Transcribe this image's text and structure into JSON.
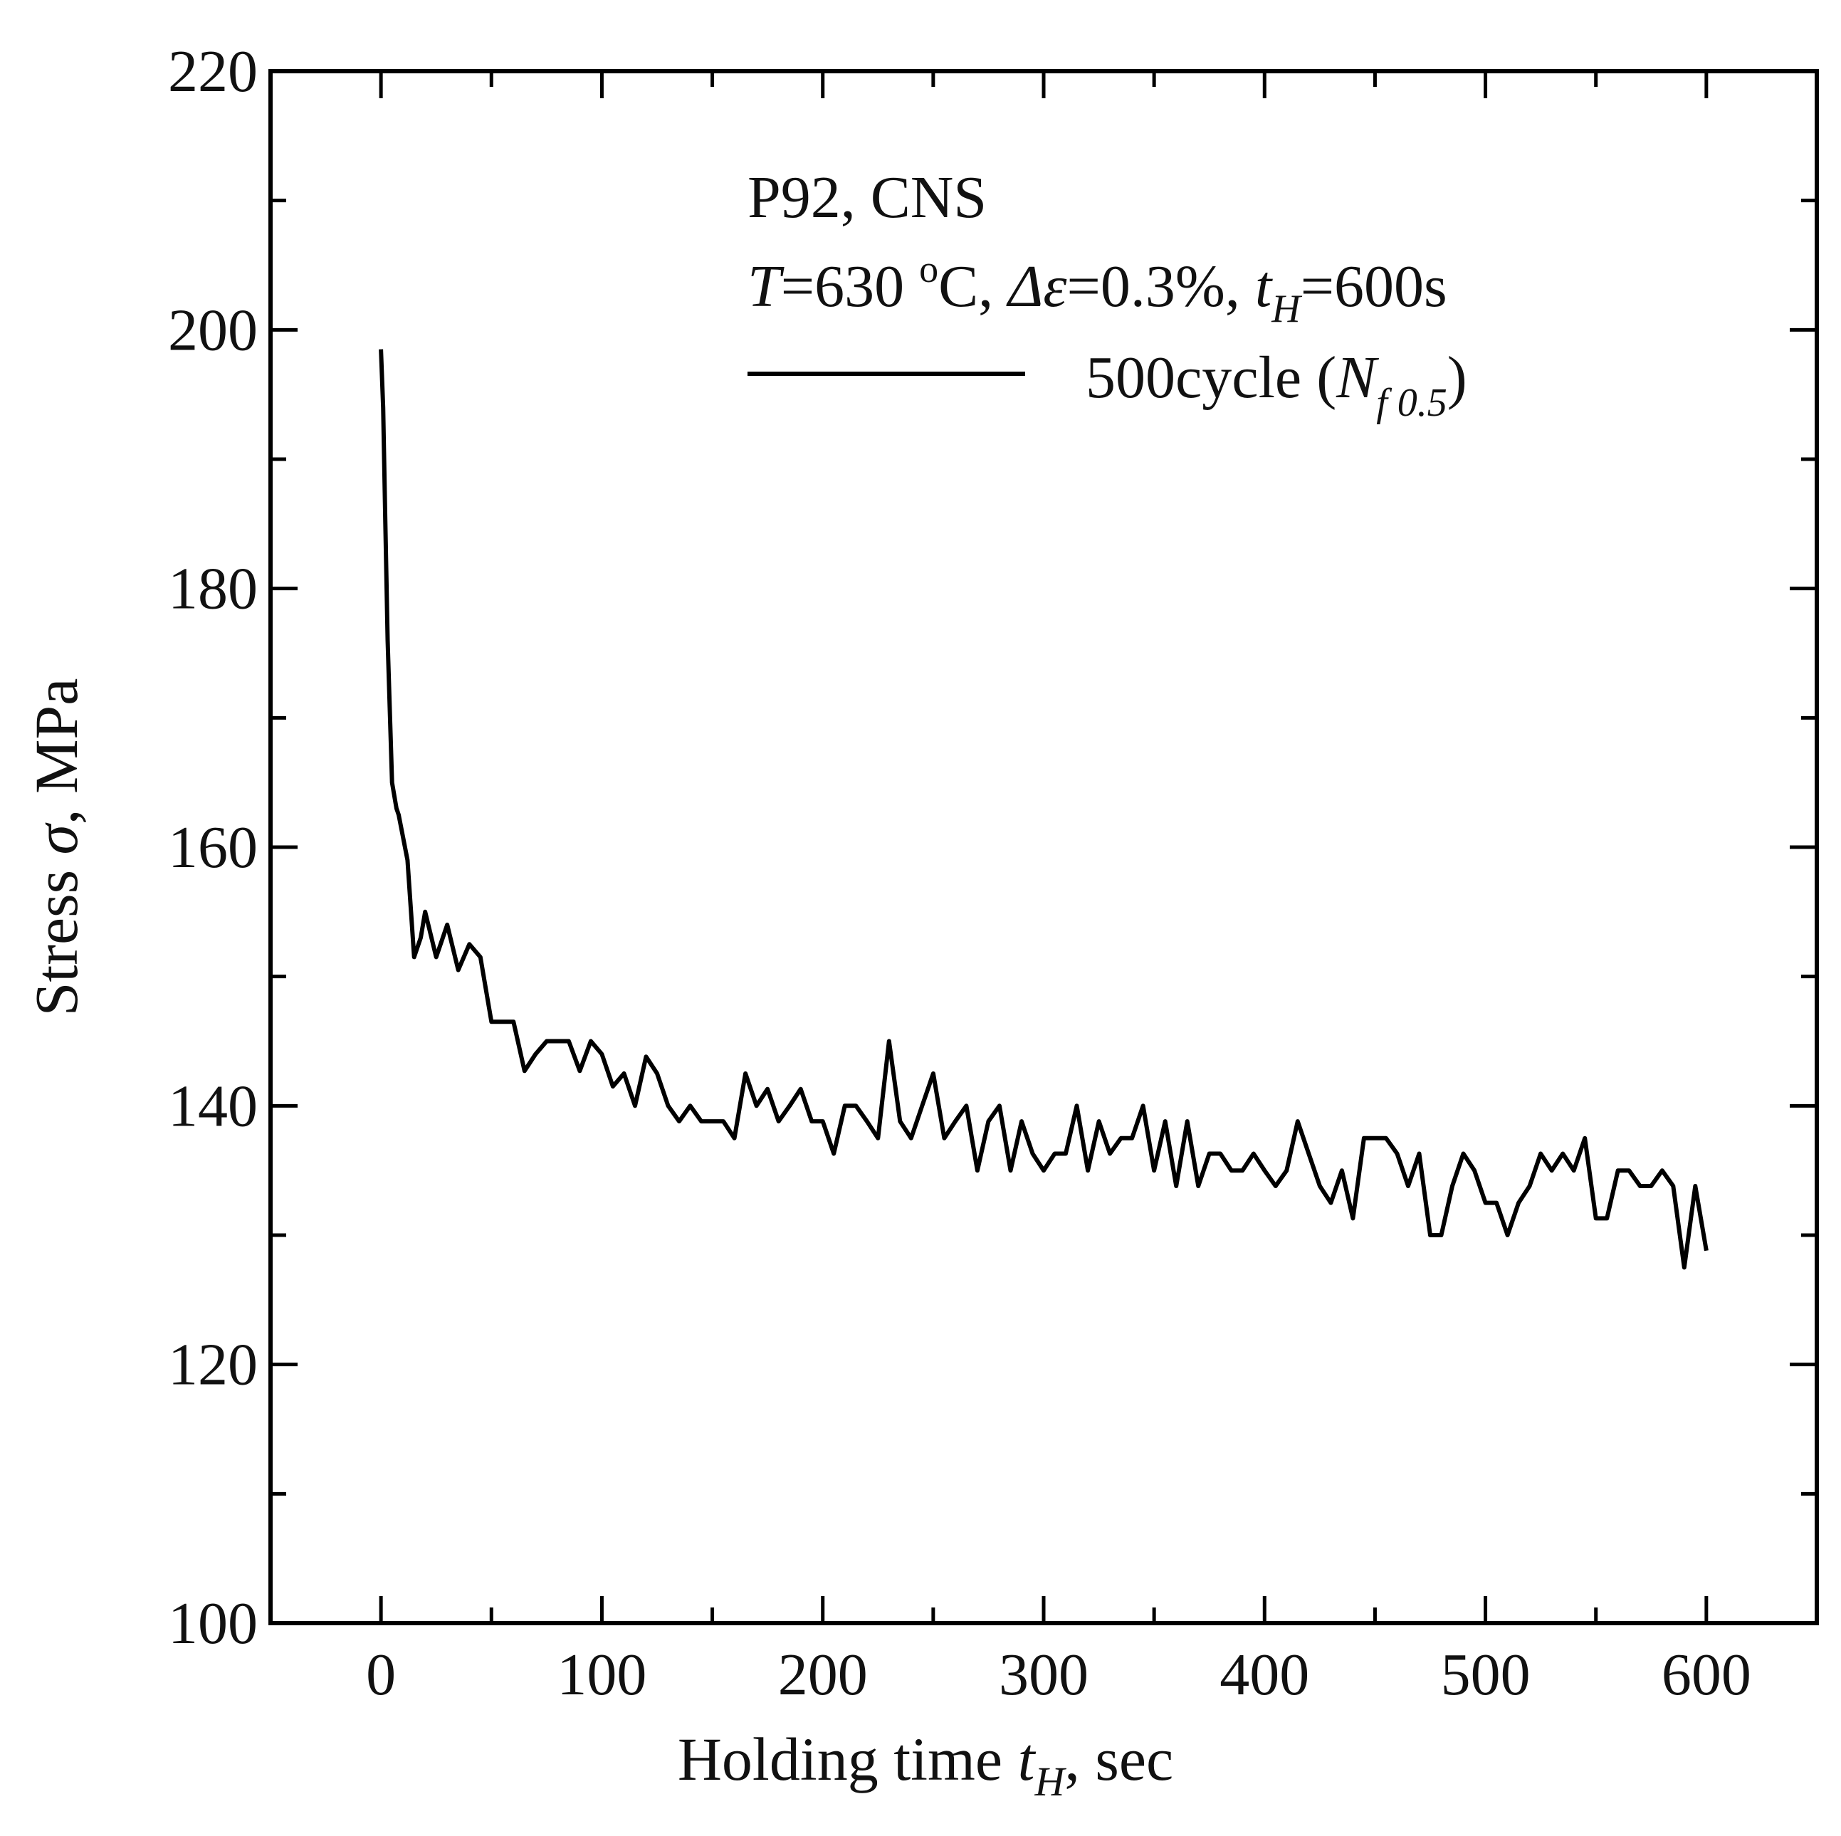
{
  "chart_data": {
    "type": "line",
    "title": "",
    "xlabel": "Holding time t_H, sec",
    "ylabel": "Stress σ, MPa",
    "xlim": [
      -50,
      650
    ],
    "ylim": [
      100,
      220
    ],
    "x_ticks": [
      0,
      100,
      200,
      300,
      400,
      500,
      600
    ],
    "y_ticks": [
      100,
      120,
      140,
      160,
      180,
      200,
      220
    ],
    "x_tick_labels": [
      "0",
      "100",
      "200",
      "300",
      "400",
      "500",
      "600"
    ],
    "y_tick_labels": [
      "100",
      "120",
      "140",
      "160",
      "180",
      "200",
      "220"
    ],
    "grid": false,
    "xlabel_parts": {
      "pre": "Holding time ",
      "var": "t",
      "sub": "H",
      "post": ", sec"
    },
    "ylabel_parts": {
      "pre": "Stress ",
      "var": "σ",
      "post": ", MPa"
    },
    "annotations": {
      "line1": "P92, CNS",
      "line2": {
        "T": "T",
        "T_val": "=630 ",
        "deg": "o",
        "unit": "C, ",
        "de": "Δε",
        "de_val": "=0.3%, ",
        "t": "t",
        "t_sub": "H",
        "t_val": "=600s"
      }
    },
    "legend": {
      "position": "top-right",
      "entries": [
        {
          "name": "500cycle",
          "open": " (",
          "N": "N",
          "N_sub": "f 0.5",
          "close": ")"
        }
      ]
    },
    "series": [
      {
        "name": "500cycle (N_f0.5)",
        "color": "#000000",
        "x": [
          0,
          1,
          2,
          3,
          5,
          7,
          8,
          12,
          15,
          18,
          20,
          25,
          30,
          35,
          40,
          45,
          50,
          55,
          60,
          65,
          70,
          75,
          80,
          85,
          90,
          95,
          100,
          105,
          110,
          115,
          120,
          125,
          130,
          135,
          140,
          145,
          150,
          155,
          160,
          165,
          170,
          175,
          180,
          185,
          190,
          195,
          200,
          205,
          210,
          215,
          220,
          225,
          230,
          235,
          240,
          245,
          250,
          255,
          260,
          265,
          270,
          275,
          280,
          285,
          290,
          295,
          300,
          305,
          310,
          315,
          320,
          325,
          330,
          335,
          340,
          345,
          350,
          355,
          360,
          365,
          370,
          375,
          380,
          385,
          390,
          395,
          400,
          405,
          410,
          415,
          420,
          425,
          430,
          435,
          440,
          445,
          450,
          455,
          460,
          465,
          470,
          475,
          480,
          485,
          490,
          495,
          500,
          505,
          510,
          515,
          520,
          525,
          530,
          535,
          540,
          545,
          550,
          555,
          560,
          565,
          570,
          575,
          580,
          585,
          590,
          595,
          600
        ],
        "values": [
          198.5,
          194,
          185,
          176,
          165,
          163,
          162.5,
          159,
          151.5,
          153,
          155,
          151.5,
          154,
          150.5,
          152.5,
          151.5,
          146.5,
          146.5,
          146.5,
          142.7,
          144,
          145,
          145,
          145,
          142.7,
          145,
          144,
          141.5,
          142.5,
          140,
          143.8,
          142.5,
          140,
          138.8,
          140,
          138.8,
          138.8,
          138.8,
          137.5,
          142.5,
          140,
          141.3,
          138.8,
          140,
          141.3,
          138.8,
          138.8,
          136.3,
          140,
          140,
          138.8,
          137.5,
          145,
          138.8,
          137.5,
          140,
          142.5,
          137.5,
          138.8,
          140,
          135,
          138.8,
          140,
          135,
          138.8,
          136.3,
          135,
          136.3,
          136.3,
          140,
          135,
          138.8,
          136.3,
          137.5,
          137.5,
          140,
          135,
          138.8,
          133.8,
          138.8,
          133.8,
          136.3,
          136.3,
          135,
          135,
          136.3,
          135,
          133.8,
          135,
          138.8,
          136.3,
          133.8,
          132.5,
          135,
          131.3,
          137.5,
          137.5,
          137.5,
          136.3,
          133.8,
          136.3,
          130,
          130,
          133.8,
          136.3,
          135,
          132.5,
          132.5,
          130,
          132.5,
          133.8,
          136.3,
          135,
          136.3,
          135,
          137.5,
          131.3,
          131.3,
          135,
          135,
          133.8,
          133.8,
          135,
          133.8,
          127.5,
          133.8,
          128.8
        ]
      }
    ]
  }
}
